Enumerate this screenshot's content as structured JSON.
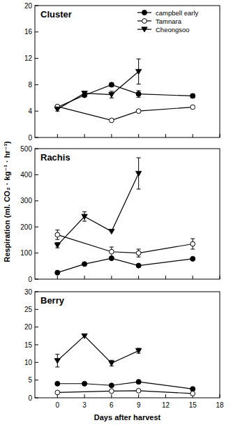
{
  "chart_data": [
    {
      "type": "line",
      "title": "Cluster",
      "y_label": "Respiration (ml. CO₂ · kg⁻¹ · hr⁻¹)",
      "xlim": [
        -2.5,
        18
      ],
      "xticks": [
        0,
        3,
        6,
        9,
        12,
        15,
        18
      ],
      "ylim": [
        0,
        20
      ],
      "yticks": [
        0,
        4,
        8,
        12,
        16,
        20
      ],
      "tick_labels": "y",
      "legend": "upper right",
      "series": [
        {
          "name": "campbell early",
          "color": "#000000",
          "marker": "circle",
          "line_style": "solid",
          "x": [
            0,
            3,
            6,
            9,
            15
          ],
          "values": [
            4.6,
            6.4,
            8.0,
            6.6,
            6.3
          ],
          "errors": [
            null,
            null,
            0.3,
            0.5,
            0.3
          ]
        },
        {
          "name": "Tamnara",
          "color": "#000000",
          "marker": "open_circle",
          "line_style": "solid",
          "x": [
            0,
            6,
            9,
            15
          ],
          "values": [
            4.7,
            2.6,
            4.0,
            4.6
          ],
          "errors": [
            null,
            null,
            null,
            null
          ]
        },
        {
          "name": "Cheongsoo",
          "color": "#000000",
          "marker": "triangle_down",
          "line_style": "solid",
          "x": [
            0,
            3,
            6,
            9
          ],
          "values": [
            4.3,
            6.7,
            6.5,
            10.0
          ],
          "errors": [
            0.3,
            0.3,
            0.5,
            1.9
          ]
        }
      ]
    },
    {
      "type": "line",
      "title": "Rachis",
      "xlim": [
        -2.5,
        18
      ],
      "xticks": [
        0,
        3,
        6,
        9,
        12,
        15,
        18
      ],
      "ylim": [
        0,
        500
      ],
      "yticks": [
        0,
        100,
        200,
        300,
        400,
        500
      ],
      "tick_labels": "y",
      "series": [
        {
          "name": "campbell early",
          "color": "#000000",
          "marker": "circle",
          "line_style": "solid",
          "x": [
            0,
            3,
            6,
            9,
            15
          ],
          "values": [
            25,
            58,
            80,
            52,
            78
          ],
          "errors": [
            null,
            null,
            null,
            null,
            null
          ]
        },
        {
          "name": "Tamnara",
          "color": "#000000",
          "marker": "open_circle",
          "line_style": "solid",
          "x": [
            0,
            6,
            9,
            15
          ],
          "values": [
            170,
            105,
            100,
            135
          ],
          "errors": [
            18,
            18,
            15,
            20
          ]
        },
        {
          "name": "Cheongsoo",
          "color": "#000000",
          "marker": "triangle_down",
          "line_style": "solid",
          "x": [
            0,
            3,
            6,
            9
          ],
          "values": [
            130,
            240,
            183,
            405
          ],
          "errors": [
            10,
            18,
            null,
            60
          ]
        }
      ]
    },
    {
      "type": "line",
      "title": "Berry",
      "x_label": "Days after harvest",
      "xlim": [
        -2.5,
        18
      ],
      "xticks": [
        0,
        3,
        6,
        9,
        12,
        15,
        18
      ],
      "ylim": [
        0,
        30
      ],
      "yticks": [
        0,
        5,
        10,
        15,
        20,
        25,
        30
      ],
      "series": [
        {
          "name": "campbell early",
          "color": "#000000",
          "marker": "circle",
          "line_style": "solid",
          "x": [
            0,
            3,
            6,
            9,
            15
          ],
          "values": [
            4.0,
            4.0,
            3.5,
            4.5,
            2.5
          ],
          "errors": [
            null,
            null,
            null,
            null,
            null
          ]
        },
        {
          "name": "Tamnara",
          "color": "#000000",
          "marker": "open_circle",
          "line_style": "solid",
          "x": [
            0,
            6,
            9,
            15
          ],
          "values": [
            1.5,
            1.9,
            2.0,
            1.2
          ],
          "errors": [
            null,
            null,
            null,
            null
          ]
        },
        {
          "name": "Cheongsoo",
          "color": "#000000",
          "marker": "triangle_down",
          "line_style": "solid",
          "x": [
            0,
            3,
            6,
            9
          ],
          "values": [
            10.5,
            17.5,
            9.8,
            13.3
          ],
          "errors": [
            1.8,
            null,
            0.8,
            0.7
          ]
        }
      ]
    }
  ]
}
